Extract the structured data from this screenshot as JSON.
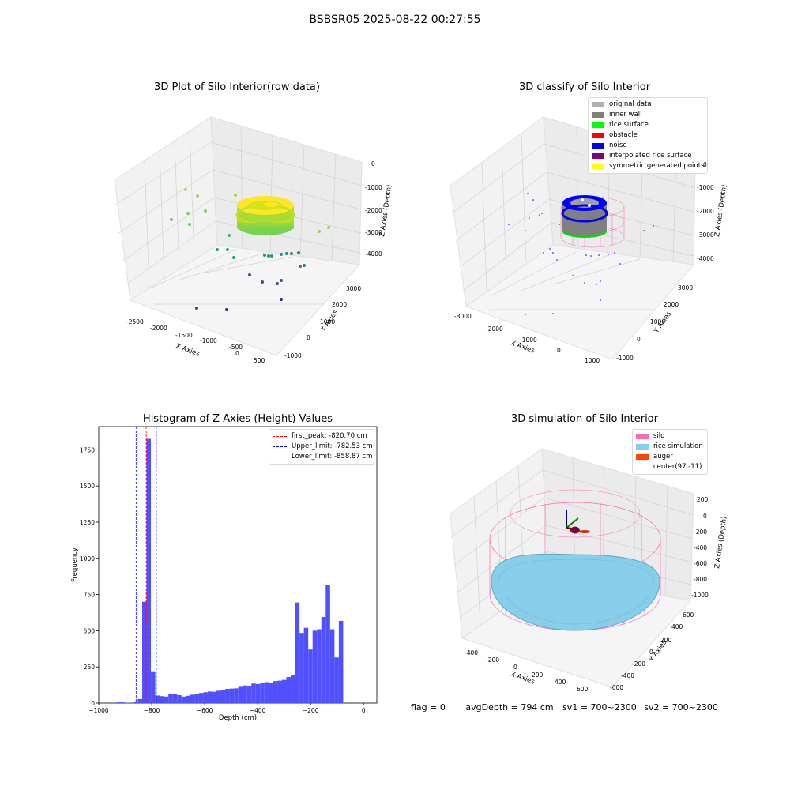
{
  "suptitle": "BSBSR05 2025-08-22 00:27:55",
  "status": {
    "flag": "flag = 0",
    "avg_depth": "avgDepth = 794 cm",
    "sv1": "sv1 = 700~2300",
    "sv2": "sv2 = 700~2300"
  },
  "chart_data": [
    {
      "type": "scatter",
      "title": "3D Plot of Silo Interior(row data)",
      "xlabel": "X Axies",
      "ylabel": "Y Axies",
      "zlabel": "Z Axies (Depth)",
      "x_ticks": [
        "-2500",
        "-2000",
        "-1500",
        "-1000",
        "-500",
        "0",
        "500"
      ],
      "y_ticks": [
        "-1000",
        "0",
        "1000",
        "2000",
        "3000"
      ],
      "z_ticks": [
        "0",
        "-1000",
        "-2000",
        "-3000",
        "-4000"
      ]
    },
    {
      "type": "scatter",
      "title": "3D classify of Silo Interior",
      "xlabel": "X Axies",
      "ylabel": "Y Axies",
      "zlabel": "Z Axies (Depth)",
      "x_ticks": [
        "-3000",
        "-2000",
        "-1000",
        "0",
        "1000"
      ],
      "y_ticks": [
        "-1000",
        "0",
        "1000",
        "2000",
        "3000"
      ],
      "z_ticks": [
        "0",
        "-1000",
        "-2000",
        "-3000",
        "-4000"
      ],
      "legend": [
        {
          "label": "original data",
          "color": "#b0b0b0"
        },
        {
          "label": "inner wall",
          "color": "#808080"
        },
        {
          "label": "rice surface",
          "color": "#00ff00"
        },
        {
          "label": "obstacle",
          "color": "#ff0000"
        },
        {
          "label": "noise",
          "color": "#0000ff"
        },
        {
          "label": "interpolated rice surface",
          "color": "#800080"
        },
        {
          "label": "symmetric generated points",
          "color": "#ffff00"
        }
      ]
    },
    {
      "type": "bar",
      "title": "Histogram of Z-Axies (Height) Values",
      "xlabel": "Depth (cm)",
      "ylabel": "Frequency",
      "xlim": [
        -1000,
        50
      ],
      "ylim": [
        0,
        1910
      ],
      "x_ticks": [
        -1000,
        -800,
        -600,
        -400,
        -200,
        0
      ],
      "y_ticks": [
        0,
        250,
        500,
        750,
        1000,
        1250,
        1500,
        1750
      ],
      "bin_width": 16.5,
      "bins": [
        [
          -935,
          5
        ],
        [
          -918.5,
          5
        ],
        [
          -902,
          3
        ],
        [
          -885.5,
          2
        ],
        [
          -869,
          8
        ],
        [
          -852.5,
          28
        ],
        [
          -836,
          700
        ],
        [
          -819.5,
          1825
        ],
        [
          -803,
          220
        ],
        [
          -786.5,
          52
        ],
        [
          -770,
          48
        ],
        [
          -753.5,
          45
        ],
        [
          -737,
          62
        ],
        [
          -720.5,
          60
        ],
        [
          -704,
          55
        ],
        [
          -687.5,
          45
        ],
        [
          -671,
          50
        ],
        [
          -654.5,
          58
        ],
        [
          -638,
          62
        ],
        [
          -621.5,
          70
        ],
        [
          -605,
          75
        ],
        [
          -588.5,
          80
        ],
        [
          -572,
          78
        ],
        [
          -555.5,
          85
        ],
        [
          -539,
          90
        ],
        [
          -522.5,
          98
        ],
        [
          -506,
          100
        ],
        [
          -489.5,
          102
        ],
        [
          -473,
          118
        ],
        [
          -456.5,
          122
        ],
        [
          -440,
          120
        ],
        [
          -423.5,
          135
        ],
        [
          -407,
          132
        ],
        [
          -390.5,
          138
        ],
        [
          -374,
          145
        ],
        [
          -357.5,
          140
        ],
        [
          -341,
          152
        ],
        [
          -324.5,
          155
        ],
        [
          -308,
          160
        ],
        [
          -291.5,
          180
        ],
        [
          -275,
          195
        ],
        [
          -258.5,
          695
        ],
        [
          -242,
          485
        ],
        [
          -225.5,
          520
        ],
        [
          -209,
          370
        ],
        [
          -192.5,
          500
        ],
        [
          -176,
          510
        ],
        [
          -159.5,
          595
        ],
        [
          -143,
          815
        ],
        [
          -126.5,
          510
        ],
        [
          -110,
          315
        ],
        [
          -93.5,
          568
        ]
      ],
      "vlines": [
        {
          "label": "first_peak: -820.70 cm",
          "x": -820.7,
          "color": "#ff0000"
        },
        {
          "label": "Upper_limit: -782.53 cm",
          "x": -782.53,
          "color": "#0000ff"
        },
        {
          "label": "Lower_limit: -858.87 cm",
          "x": -858.87,
          "color": "#0000ff"
        }
      ],
      "bar_color": "#5050ff"
    },
    {
      "type": "scatter",
      "title": "3D simulation of Silo Interior",
      "xlabel": "X Axies",
      "ylabel": "Y Axies",
      "zlabel": "Z Axies (Depth)",
      "x_ticks": [
        "-400",
        "-200",
        "0",
        "200",
        "400",
        "600"
      ],
      "y_ticks": [
        "-600",
        "-400",
        "-200",
        "0",
        "200",
        "400",
        "600"
      ],
      "z_ticks": [
        "200",
        "0",
        "-200",
        "-400",
        "-600",
        "-800",
        "-1000"
      ],
      "legend": [
        {
          "label": "silo",
          "color": "#ff69b4"
        },
        {
          "label": "rice simulation",
          "color": "#87ceeb"
        },
        {
          "label": "auger",
          "color": "#ff4500"
        },
        {
          "label": "center(97,-11)",
          "color": "#ffffff"
        }
      ]
    }
  ]
}
